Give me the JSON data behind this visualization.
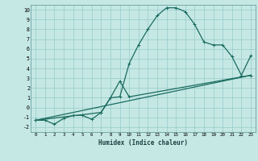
{
  "xlabel": "Humidex (Indice chaleur)",
  "xlim": [
    -0.5,
    23.5
  ],
  "ylim": [
    -2.5,
    10.5
  ],
  "xticks": [
    0,
    1,
    2,
    3,
    4,
    5,
    6,
    7,
    8,
    9,
    10,
    11,
    12,
    13,
    14,
    15,
    16,
    17,
    18,
    19,
    20,
    21,
    22,
    23
  ],
  "yticks": [
    -2,
    -1,
    0,
    1,
    2,
    3,
    4,
    5,
    6,
    7,
    8,
    9,
    10
  ],
  "bg_color": "#c5e8e5",
  "grid_color": "#9ecece",
  "line_color": "#1a6b5e",
  "line1_x": [
    0,
    1,
    2,
    3,
    4,
    5,
    6,
    7,
    8,
    9,
    10,
    11,
    12,
    13,
    14,
    15,
    16,
    17,
    18,
    19,
    20,
    21,
    22,
    23
  ],
  "line1_y": [
    -1.3,
    -1.3,
    -1.7,
    -1.1,
    -0.8,
    -0.8,
    -1.2,
    -0.5,
    1.0,
    1.1,
    4.5,
    6.4,
    8.0,
    9.4,
    10.2,
    10.2,
    9.8,
    8.5,
    6.7,
    6.4,
    6.4,
    5.2,
    3.3,
    5.3
  ],
  "line2_x": [
    0,
    23
  ],
  "line2_y": [
    -1.3,
    3.3
  ],
  "line3_x": [
    0,
    7,
    8,
    9,
    10,
    23
  ],
  "line3_y": [
    -1.3,
    -0.5,
    1.0,
    2.7,
    1.1,
    3.3
  ]
}
